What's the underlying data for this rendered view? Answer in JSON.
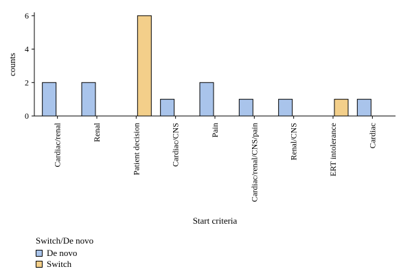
{
  "chart_data": {
    "type": "bar",
    "xlabel": "Start criteria",
    "ylabel": "counts",
    "ylim": [
      0,
      6.2
    ],
    "yticks": [
      0,
      2,
      4,
      6
    ],
    "categories": [
      "Cardiac/renal",
      "Renal",
      "Patient decision",
      "Cardiac/CNS",
      "Pain",
      "Cardiac/renal/CNS/pain",
      "Renal/CNS",
      "ERT intolerance",
      "Cardiac"
    ],
    "series": [
      {
        "name": "De novo",
        "color": "#a9c4eb",
        "values": [
          2,
          2,
          0,
          1,
          2,
          1,
          1,
          0,
          1
        ]
      },
      {
        "name": "Switch",
        "color": "#f3cf8a",
        "values": [
          0,
          0,
          6,
          0,
          0,
          0,
          0,
          1,
          0
        ]
      }
    ],
    "grid": false,
    "legend": {
      "title": "Switch/De novo",
      "position": "bottom-left"
    }
  }
}
